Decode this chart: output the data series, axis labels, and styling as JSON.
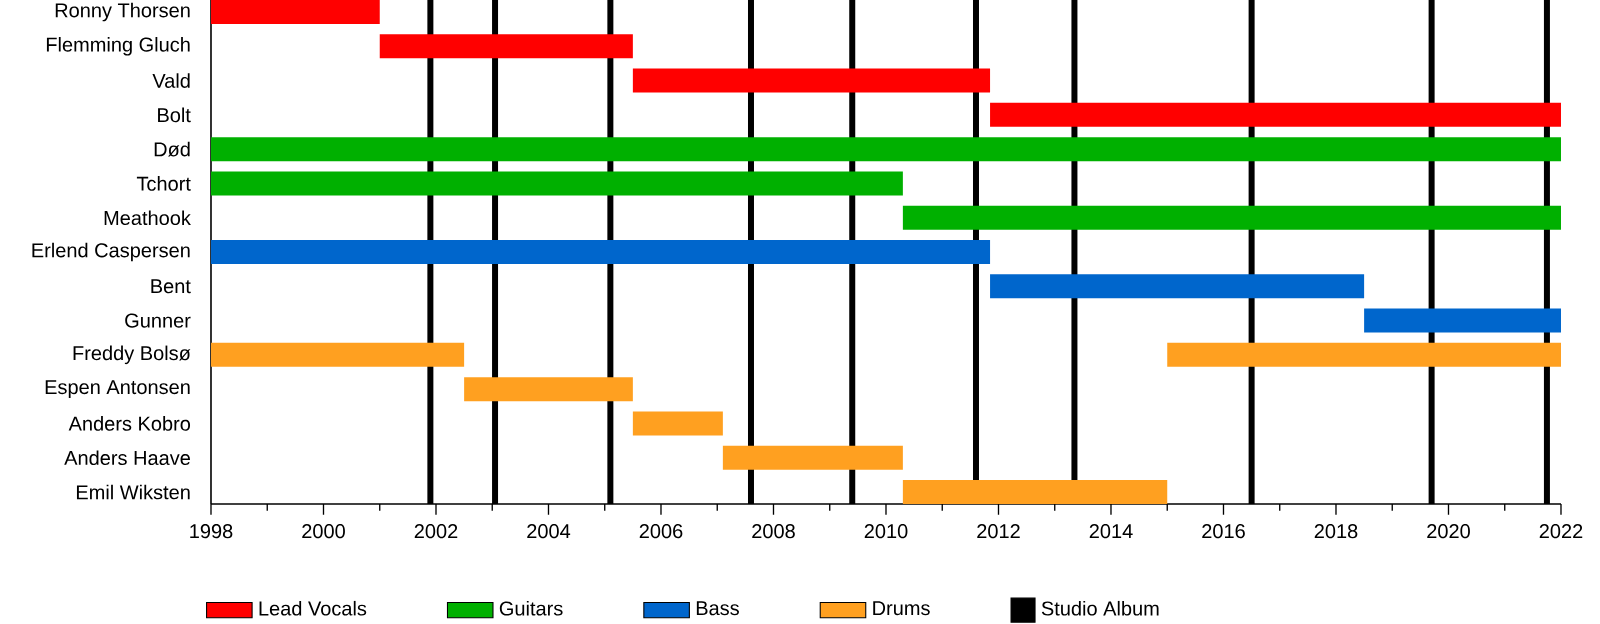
{
  "chart_data": {
    "type": "bar",
    "orientation": "horizontal",
    "categories": [
      "Ronny Thorsen",
      "Flemming Gluch",
      "Vald",
      "Bolt",
      "Død",
      "Tchort",
      "Meathook",
      "Erlend Caspersen",
      "Bent",
      "Gunner",
      "Freddy Bolsø",
      "Espen Antonsen",
      "Anders Kobro",
      "Anders Haave",
      "Emil Wiksten"
    ],
    "series": [
      {
        "name": "Lead Vocals",
        "color": "#ff0000",
        "base": [
          1998,
          2001,
          2005.5,
          2011.85,
          null,
          null,
          null,
          null,
          null,
          null,
          null,
          null,
          null,
          null,
          null
        ],
        "values": [
          3,
          4.5,
          6.35,
          10.15,
          null,
          null,
          null,
          null,
          null,
          null,
          null,
          null,
          null,
          null,
          null
        ]
      },
      {
        "name": "Guitars",
        "color": "#00b000",
        "base": [
          null,
          null,
          null,
          null,
          1998,
          1998,
          2010.3,
          null,
          null,
          null,
          null,
          null,
          null,
          null,
          null
        ],
        "values": [
          null,
          null,
          null,
          null,
          24,
          12.3,
          11.7,
          null,
          null,
          null,
          null,
          null,
          null,
          null,
          null
        ]
      },
      {
        "name": "Bass",
        "color": "#0066cc",
        "base": [
          null,
          null,
          null,
          null,
          null,
          null,
          null,
          1998,
          2011.85,
          2018.5,
          null,
          null,
          null,
          null,
          null
        ],
        "values": [
          null,
          null,
          null,
          null,
          null,
          null,
          null,
          13.85,
          6.65,
          3.5,
          null,
          null,
          null,
          null,
          null
        ]
      },
      {
        "name": "Drums",
        "color": "#ffa020",
        "base": [
          null,
          null,
          null,
          null,
          null,
          null,
          null,
          null,
          null,
          null,
          1998,
          2002.5,
          2005.5,
          2007.1,
          2010.3
        ],
        "values": [
          null,
          null,
          null,
          null,
          null,
          null,
          null,
          null,
          null,
          null,
          4.5,
          3,
          1.6,
          3.2,
          4.7
        ]
      },
      {
        "color": "#ffa020",
        "base": [
          null,
          null,
          null,
          null,
          null,
          null,
          null,
          null,
          null,
          null,
          2015,
          null,
          null,
          null,
          null
        ],
        "values": [
          null,
          null,
          null,
          null,
          null,
          null,
          null,
          null,
          null,
          null,
          7,
          null,
          null,
          null,
          null
        ]
      }
    ],
    "xlim": [
      1998,
      2022
    ],
    "xticks": [
      1998,
      {
        "value": 1999,
        "label": null
      },
      2000,
      {
        "value": 2001,
        "label": null
      },
      2002,
      {
        "value": 2003,
        "label": null
      },
      2004,
      {
        "value": 2005,
        "label": null
      },
      2006,
      {
        "value": 2007,
        "label": null
      },
      2008,
      {
        "value": 2009,
        "label": null
      },
      2010,
      {
        "value": 2011,
        "label": null
      },
      2012,
      {
        "value": 2013,
        "label": null
      },
      2014,
      {
        "value": 2015,
        "label": null
      },
      2016,
      {
        "value": 2017,
        "label": null
      },
      2018,
      {
        "value": 2019,
        "label": null
      },
      2020,
      {
        "value": 2021,
        "label": null
      },
      2022
    ],
    "ref_lines": [
      {
        "axis": "x",
        "value": 2001.9,
        "color": "#000000"
      },
      {
        "axis": "x",
        "value": 2003.05,
        "color": "#000000"
      },
      {
        "axis": "x",
        "value": 2005.1,
        "color": "#000000"
      },
      {
        "axis": "x",
        "value": 2007.6,
        "color": "#000000"
      },
      {
        "axis": "x",
        "value": 2009.4,
        "color": "#000000"
      },
      {
        "axis": "x",
        "value": 2011.6,
        "color": "#000000"
      },
      {
        "axis": "x",
        "value": 2013.35,
        "color": "#000000"
      },
      {
        "axis": "x",
        "value": 2016.5,
        "color": "#000000"
      },
      {
        "axis": "x",
        "value": 2019.7,
        "color": "#000000"
      },
      {
        "axis": "x",
        "value": 2021.75,
        "color": "#000000"
      }
    ],
    "annotations": [
      "Studio Album"
    ],
    "legend": "bottom",
    "grid": false
  }
}
